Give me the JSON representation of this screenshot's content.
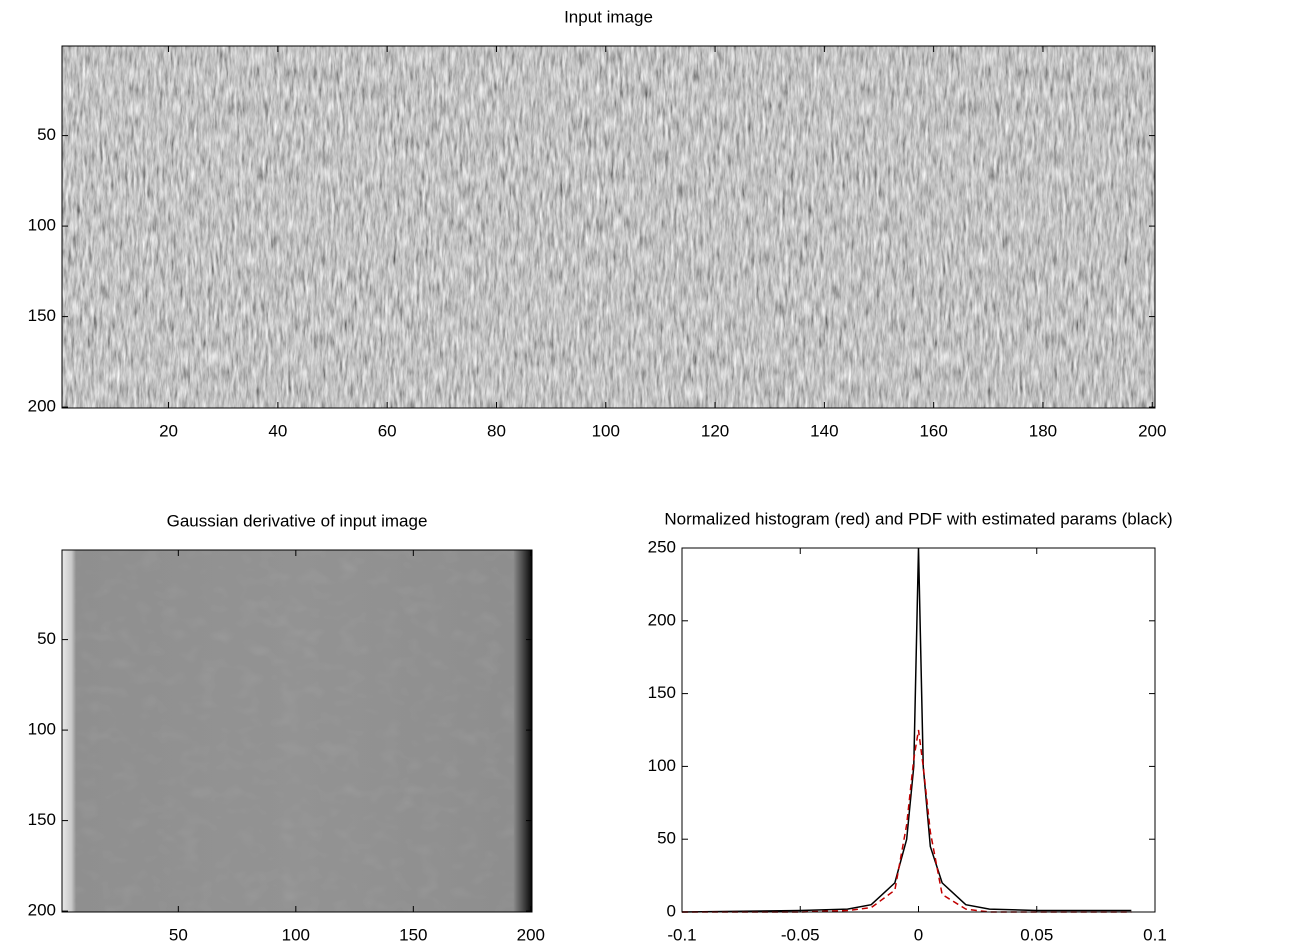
{
  "chart_data": [
    {
      "type": "image",
      "title": "Input image",
      "xlim": [
        0.5,
        200.5
      ],
      "ylim": [
        0.5,
        200.5
      ],
      "xticks": [
        20,
        40,
        60,
        80,
        100,
        120,
        140,
        160,
        180,
        200
      ],
      "yticks": [
        50,
        100,
        150,
        200
      ],
      "colormap": "noise"
    },
    {
      "type": "image",
      "title": "Gaussian derivative of input image",
      "xlim": [
        0.5,
        200.5
      ],
      "ylim": [
        0.5,
        200.5
      ],
      "xticks": [
        50,
        100,
        150,
        200
      ],
      "yticks": [
        50,
        100,
        150,
        200
      ],
      "colormap": "derivative"
    },
    {
      "type": "line",
      "title": "Normalized histogram (red) and PDF with estimated params (black)",
      "xlim": [
        -0.1,
        0.1
      ],
      "ylim": [
        0,
        250
      ],
      "xticks": [
        -0.1,
        -0.05,
        0,
        0.05,
        0.1
      ],
      "yticks": [
        0,
        50,
        100,
        150,
        200,
        250
      ],
      "x": [
        -0.1,
        -0.05,
        -0.03,
        -0.02,
        -0.01,
        -0.005,
        -0.002,
        0,
        0.002,
        0.005,
        0.01,
        0.02,
        0.03,
        0.05,
        0.09
      ],
      "series": [
        {
          "color": "#000000",
          "linestyle": "solid",
          "values": [
            0,
            1,
            2,
            5,
            20,
            50,
            100,
            250,
            100,
            45,
            20,
            5,
            2,
            1,
            1
          ]
        },
        {
          "color": "#c00000",
          "linestyle": "dashed",
          "values": [
            0,
            0,
            1,
            3,
            15,
            60,
            105,
            125,
            100,
            55,
            12,
            2,
            0,
            0,
            0
          ]
        }
      ]
    }
  ]
}
